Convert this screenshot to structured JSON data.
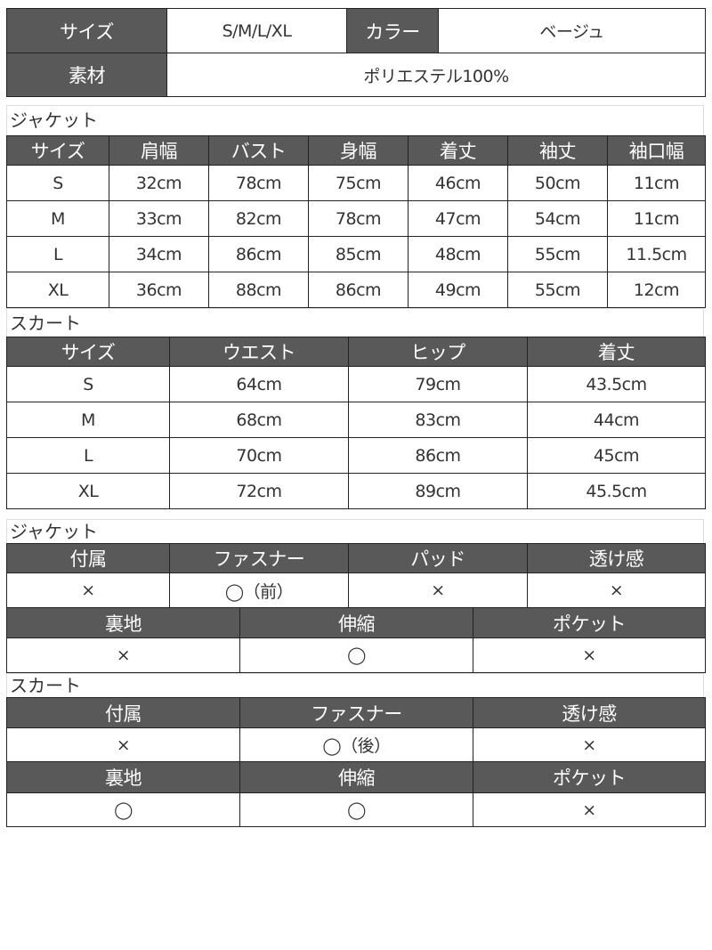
{
  "summary": {
    "size_label": "サイズ",
    "size_value": "S/M/L/XL",
    "color_label": "カラー",
    "color_value": "ベージュ",
    "material_label": "素材",
    "material_value": "ポリエステル100%"
  },
  "jacket_size": {
    "title": "ジャケット",
    "headers": [
      "サイズ",
      "肩幅",
      "バスト",
      "身幅",
      "着丈",
      "袖丈",
      "袖口幅"
    ],
    "rows": [
      [
        "S",
        "32cm",
        "78cm",
        "75cm",
        "46cm",
        "50cm",
        "11cm"
      ],
      [
        "M",
        "33cm",
        "82cm",
        "78cm",
        "47cm",
        "54cm",
        "11cm"
      ],
      [
        "L",
        "34cm",
        "86cm",
        "85cm",
        "48cm",
        "55cm",
        "11.5cm"
      ],
      [
        "XL",
        "36cm",
        "88cm",
        "86cm",
        "49cm",
        "55cm",
        "12cm"
      ]
    ]
  },
  "skirt_size": {
    "title": "スカート",
    "headers": [
      "サイズ",
      "ウエスト",
      "ヒップ",
      "着丈"
    ],
    "rows": [
      [
        "S",
        "64cm",
        "79cm",
        "43.5cm"
      ],
      [
        "M",
        "68cm",
        "83cm",
        "44cm"
      ],
      [
        "L",
        "70cm",
        "86cm",
        "45cm"
      ],
      [
        "XL",
        "72cm",
        "89cm",
        "45.5cm"
      ]
    ]
  },
  "jacket_attr": {
    "title": "ジャケット",
    "headers1": [
      "付属",
      "ファスナー",
      "パッド",
      "透け感"
    ],
    "values1": [
      "×",
      "◯（前）",
      "×",
      "×"
    ],
    "headers2": [
      "裏地",
      "伸縮",
      "ポケット"
    ],
    "values2": [
      "×",
      "◯",
      "×"
    ]
  },
  "skirt_attr": {
    "title": "スカート",
    "headers1": [
      "付属",
      "ファスナー",
      "透け感"
    ],
    "values1": [
      "×",
      "◯（後）",
      "×"
    ],
    "headers2": [
      "裏地",
      "伸縮",
      "ポケット"
    ],
    "values2": [
      "◯",
      "◯",
      "×"
    ]
  },
  "colors": {
    "header_bg": "#595959",
    "header_text": "#ffffff",
    "border": "#222222"
  }
}
